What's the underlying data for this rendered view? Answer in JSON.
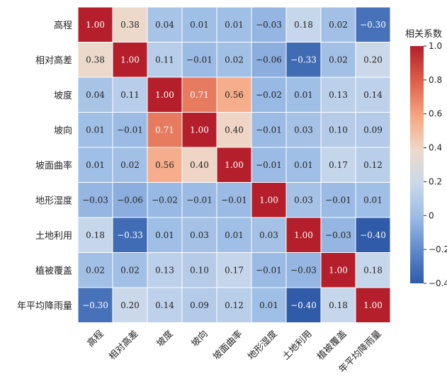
{
  "chart_data": {
    "type": "heatmap",
    "title": "",
    "xlabel": "",
    "ylabel": "",
    "rows": [
      "高程",
      "相对高差",
      "坡度",
      "坡向",
      "坡面曲率",
      "地形湿度",
      "土地利用",
      "植被覆盖",
      "年平均降雨量"
    ],
    "columns": [
      "高程",
      "相对高差",
      "坡度",
      "坡向",
      "坡面曲率",
      "地形湿度",
      "土地利用",
      "植被覆盖",
      "年平均降雨量"
    ],
    "values": [
      [
        1.0,
        0.38,
        0.04,
        0.01,
        0.01,
        -0.03,
        0.18,
        0.02,
        -0.3
      ],
      [
        0.38,
        1.0,
        0.11,
        -0.01,
        0.02,
        -0.06,
        -0.33,
        0.02,
        0.2
      ],
      [
        0.04,
        0.11,
        1.0,
        0.71,
        0.56,
        -0.02,
        0.01,
        0.13,
        0.14
      ],
      [
        0.01,
        -0.01,
        0.71,
        1.0,
        0.4,
        -0.01,
        0.03,
        0.1,
        0.09
      ],
      [
        0.01,
        0.02,
        0.56,
        0.4,
        1.0,
        -0.01,
        0.01,
        0.17,
        0.12
      ],
      [
        -0.03,
        -0.06,
        -0.02,
        -0.01,
        -0.01,
        1.0,
        0.03,
        -0.01,
        0.01
      ],
      [
        0.18,
        -0.33,
        0.01,
        0.03,
        0.01,
        0.03,
        1.0,
        -0.03,
        -0.4
      ],
      [
        0.02,
        0.02,
        0.13,
        0.1,
        0.17,
        -0.01,
        -0.03,
        1.0,
        0.18
      ],
      [
        -0.3,
        0.2,
        0.14,
        0.09,
        0.12,
        0.01,
        -0.4,
        0.18,
        1.0
      ]
    ],
    "colorbar": {
      "title": "相关系数",
      "range": [
        -0.4,
        1.0
      ],
      "ticks": [
        1.0,
        0.8,
        0.6,
        0.4,
        0.2,
        0,
        -0.2,
        -0.4
      ],
      "tick_labels": [
        "1.0",
        "0.8",
        "0.6",
        "0.4",
        "0.2",
        "0",
        "−0.2",
        "−0.4"
      ],
      "colormap": "coolwarm",
      "colors": {
        "low": "#2f5ba8",
        "mid": "#dddddd",
        "high": "#b41f2b"
      }
    },
    "grid": true,
    "legend_position": "right"
  }
}
